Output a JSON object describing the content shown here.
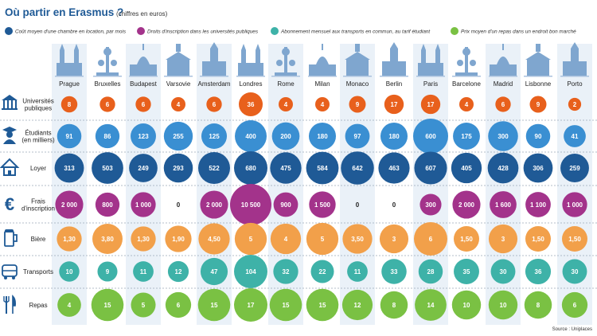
{
  "header": {
    "title": "Où partir en Erasmus ?",
    "subtitle": "(chiffres en euros)"
  },
  "legend": [
    {
      "label": "Coût moyen d'une chambre en location, par mois",
      "color": "#1f5a96"
    },
    {
      "label": "Droits d'inscription dans les universités publiques",
      "color": "#a3338b"
    },
    {
      "label": "Abonnement mensuel aux transports en commun, au tarif étudiant",
      "color": "#3eb2a8"
    },
    {
      "label": "Prix moyen d'un repas dans un endroit bon marché",
      "color": "#7ac143"
    }
  ],
  "source": "Source : Uniplaces",
  "chart_data": {
    "type": "bubble-table",
    "cities": [
      "Prague",
      "Bruxelles",
      "Budapest",
      "Varsovie",
      "Amsterdam",
      "Londres",
      "Rome",
      "Milan",
      "Monaco",
      "Berlin",
      "Paris",
      "Barcelone",
      "Madrid",
      "Lisbonne",
      "Porto"
    ],
    "rows": [
      {
        "label": [
          "Universités",
          "publiques"
        ],
        "icon": "university-icon",
        "color": "#e8601c",
        "values": [
          8,
          6,
          6,
          4,
          6,
          36,
          4,
          4,
          9,
          17,
          17,
          4,
          6,
          9,
          2
        ],
        "labels": [
          "8",
          "6",
          "6",
          "4",
          "6",
          "36",
          "4",
          "4",
          "9",
          "17",
          "17",
          "4",
          "6",
          "9",
          "2"
        ]
      },
      {
        "label": [
          "Étudiants",
          "(en milliers)"
        ],
        "icon": "student-icon",
        "color": "#3a8fd2",
        "values": [
          91,
          86,
          123,
          255,
          125,
          400,
          200,
          180,
          97,
          180,
          600,
          175,
          300,
          90,
          41
        ],
        "labels": [
          "91",
          "86",
          "123",
          "255",
          "125",
          "400",
          "200",
          "180",
          "97",
          "180",
          "600",
          "175",
          "300",
          "90",
          "41"
        ]
      },
      {
        "label": [
          "Loyer"
        ],
        "icon": "house-icon",
        "color": "#1f5a96",
        "values": [
          313,
          503,
          249,
          293,
          522,
          680,
          475,
          584,
          642,
          463,
          607,
          405,
          428,
          306,
          259
        ],
        "labels": [
          "313",
          "503",
          "249",
          "293",
          "522",
          "680",
          "475",
          "584",
          "642",
          "463",
          "607",
          "405",
          "428",
          "306",
          "259"
        ]
      },
      {
        "label": [
          "Frais",
          "d'inscription"
        ],
        "icon": "euro-icon",
        "color": "#a3338b",
        "values": [
          2000,
          800,
          1000,
          0,
          2000,
          10500,
          900,
          1500,
          0,
          0,
          300,
          2000,
          1600,
          1100,
          1000
        ],
        "labels": [
          "2 000",
          "800",
          "1 000",
          "0",
          "2 000",
          "10 500",
          "900",
          "1 500",
          "0",
          "0",
          "300",
          "2 000",
          "1 600",
          "1 100",
          "1 000"
        ]
      },
      {
        "label": [
          "Bière"
        ],
        "icon": "beer-icon",
        "color": "#f2a04a",
        "values": [
          1.3,
          3.8,
          1.3,
          1.9,
          4.5,
          5,
          4,
          5,
          3.5,
          3,
          6,
          1.5,
          3,
          1.5,
          1.5
        ],
        "labels": [
          "1,30",
          "3,80",
          "1,30",
          "1,90",
          "4,50",
          "5",
          "4",
          "5",
          "3,50",
          "3",
          "6",
          "1,50",
          "3",
          "1,50",
          "1,50"
        ]
      },
      {
        "label": [
          "Transports"
        ],
        "icon": "bus-icon",
        "color": "#3eb2a8",
        "values": [
          10,
          9,
          11,
          12,
          47,
          104,
          32,
          22,
          11,
          33,
          28,
          35,
          30,
          36,
          30
        ],
        "labels": [
          "10",
          "9",
          "11",
          "12",
          "47",
          "104",
          "32",
          "22",
          "11",
          "33",
          "28",
          "35",
          "30",
          "36",
          "30"
        ]
      },
      {
        "label": [
          "Repas"
        ],
        "icon": "cutlery-icon",
        "color": "#7ac143",
        "values": [
          4,
          15,
          5,
          6,
          15,
          17,
          15,
          15,
          12,
          8,
          14,
          10,
          10,
          8,
          6
        ],
        "labels": [
          "4",
          "15",
          "5",
          "6",
          "15",
          "17",
          "15",
          "15",
          "12",
          "8",
          "14",
          "10",
          "10",
          "8",
          "6"
        ]
      }
    ]
  }
}
